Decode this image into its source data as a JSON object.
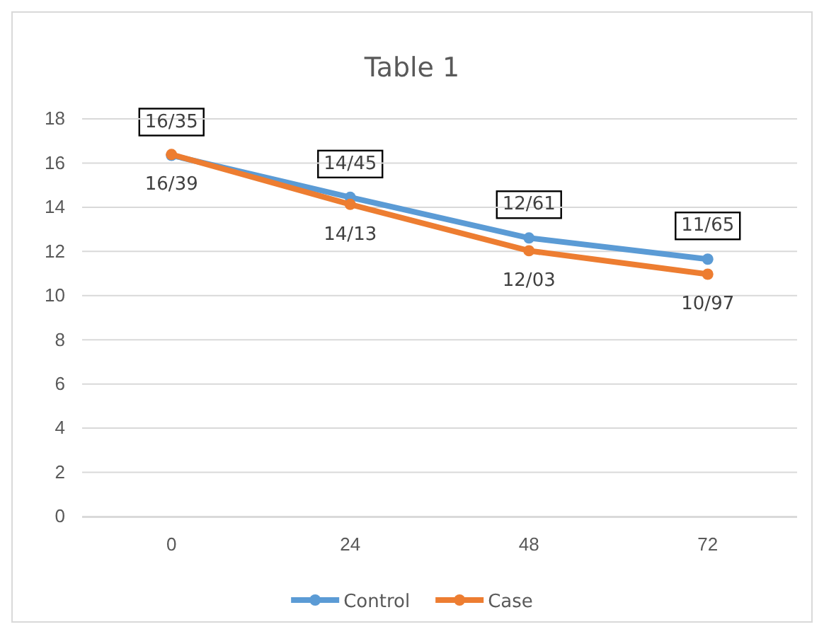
{
  "chart_data": {
    "type": "line",
    "title": "Table 1",
    "categories": [
      "0",
      "24",
      "48",
      "72"
    ],
    "series": [
      {
        "name": "Control",
        "color": "#5b9bd5",
        "values": [
          16.35,
          14.45,
          12.61,
          11.65
        ],
        "value_labels": [
          "16/35",
          "14/45",
          "12/61",
          "11/65"
        ]
      },
      {
        "name": "Case",
        "color": "#ed7d31",
        "values": [
          16.39,
          14.13,
          12.03,
          10.97
        ],
        "value_labels": [
          "16/39",
          "14/13",
          "12/03",
          "10/97"
        ]
      }
    ],
    "ylim": [
      0,
      18
    ],
    "yticks": [
      0,
      2,
      4,
      6,
      8,
      10,
      12,
      14,
      16,
      18
    ],
    "grid": "y",
    "legend": "bottom",
    "marker": "circle",
    "line_style": "solid"
  }
}
